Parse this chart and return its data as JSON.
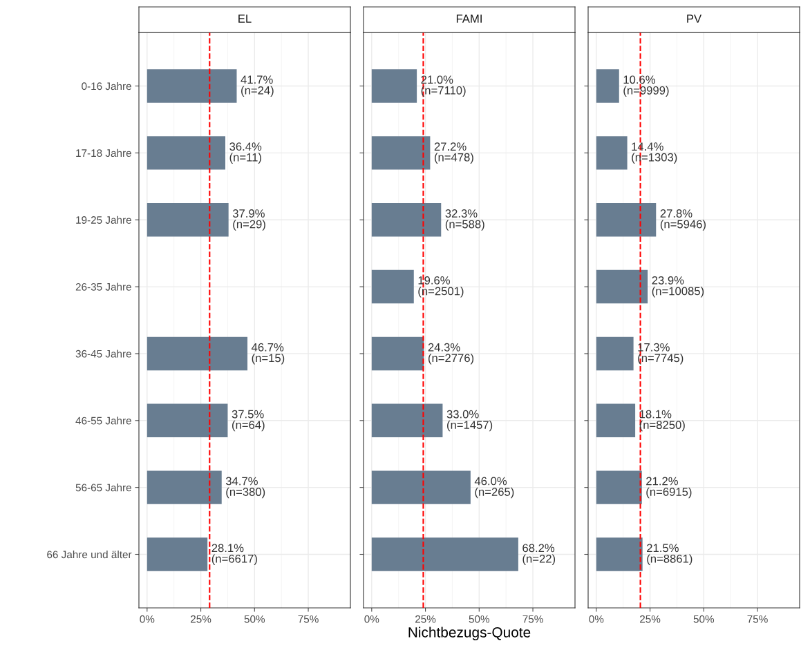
{
  "chart_data": [
    {
      "type": "bar",
      "title": "EL",
      "orientation": "horizontal",
      "categories": [
        "0-16 Jahre",
        "17-18 Jahre",
        "19-25 Jahre",
        "26-35 Jahre",
        "36-45 Jahre",
        "46-55 Jahre",
        "56-65 Jahre",
        "66 Jahre und älter"
      ],
      "series": [
        {
          "color": "#687d91",
          "values": [
            41.7,
            36.4,
            37.9,
            null,
            46.7,
            37.5,
            34.7,
            28.1
          ],
          "value_labels": [
            "41.7%\n(n=24)",
            "36.4%\n(n=11)",
            "37.9%\n(n=29)",
            null,
            "46.7%\n(n=15)",
            "37.5%\n(n=64)",
            "34.7%\n(n=380)",
            "28.1%\n(n=6617)"
          ]
        }
      ],
      "xlim": [
        -3.8,
        94.6
      ],
      "xticks": [
        {
          "value": 0,
          "label": "0%"
        },
        {
          "value": 25,
          "label": "25%"
        },
        {
          "value": 50,
          "label": "50%"
        },
        {
          "value": 75,
          "label": "75%"
        }
      ],
      "ref_lines": [
        {
          "axis": "x",
          "value": 29.1,
          "color": "#ff0000",
          "line_style": "dashed"
        }
      ],
      "grid": true
    },
    {
      "type": "bar",
      "title": "FAMI",
      "xlabel": "Nichtbezugs-Quote",
      "orientation": "horizontal",
      "tick_labels": "x",
      "categories": [
        null,
        null,
        null,
        null,
        null,
        null,
        null,
        null
      ],
      "series": [
        {
          "color": "#687d91",
          "values": [
            21.0,
            27.2,
            32.3,
            19.6,
            24.3,
            33.0,
            46.0,
            68.2
          ],
          "value_labels": [
            "21.0%\n(n=7110)",
            "27.2%\n(n=478)",
            "32.3%\n(n=588)",
            "19.6%\n(n=2501)",
            "24.3%\n(n=2776)",
            "33.0%\n(n=1457)",
            "46.0%\n(n=265)",
            "68.2%\n(n=22)"
          ]
        }
      ],
      "xlim": [
        -3.8,
        94.6
      ],
      "xticks": [
        {
          "value": 0,
          "label": "0%"
        },
        {
          "value": 25,
          "label": "25%"
        },
        {
          "value": 50,
          "label": "50%"
        },
        {
          "value": 75,
          "label": "75%"
        }
      ],
      "ref_lines": [
        {
          "axis": "x",
          "value": 24.0,
          "color": "#ff0000",
          "line_style": "dashed"
        }
      ],
      "grid": true
    },
    {
      "type": "bar",
      "title": "PV",
      "orientation": "horizontal",
      "tick_labels": "x",
      "categories": [
        null,
        null,
        null,
        null,
        null,
        null,
        null,
        null
      ],
      "series": [
        {
          "color": "#687d91",
          "values": [
            10.6,
            14.4,
            27.8,
            23.9,
            17.3,
            18.1,
            21.2,
            21.5
          ],
          "value_labels": [
            "10.6%\n(n=9999)",
            "14.4%\n(n=1303)",
            "27.8%\n(n=5946)",
            "23.9%\n(n=10085)",
            "17.3%\n(n=7745)",
            "18.1%\n(n=8250)",
            "21.2%\n(n=6915)",
            "21.5%\n(n=8861)"
          ]
        }
      ],
      "xlim": [
        -3.8,
        94.6
      ],
      "xticks": [
        {
          "value": 0,
          "label": "0%"
        },
        {
          "value": 25,
          "label": "25%"
        },
        {
          "value": 50,
          "label": "50%"
        },
        {
          "value": 75,
          "label": "75%"
        }
      ],
      "ref_lines": [
        {
          "axis": "x",
          "value": 20.5,
          "color": "#ff0000",
          "line_style": "dashed"
        }
      ],
      "grid": true
    }
  ]
}
